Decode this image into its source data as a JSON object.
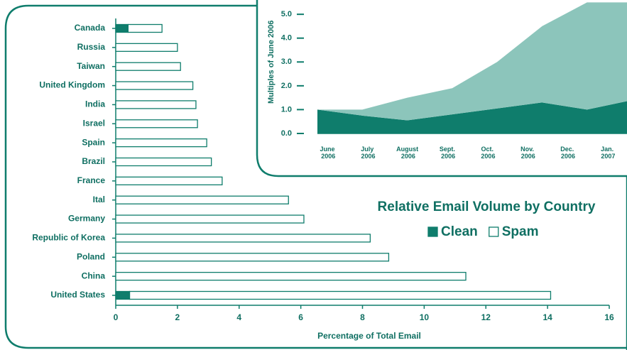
{
  "chart_data": [
    {
      "type": "bar",
      "orientation": "horizontal",
      "stacked": true,
      "title": "Relative Email Volume by Country",
      "x_label": "Percentage of Total Email",
      "categories": [
        "Canada",
        "Russia",
        "Taiwan",
        "United Kingdom",
        "India",
        "Israel",
        "Spain",
        "Brazil",
        "France",
        "Ital",
        "Germany",
        "Republic of Korea",
        "Poland",
        "China",
        "United States"
      ],
      "series": [
        {
          "name": "Clean",
          "color": "#0f7d6c",
          "values": [
            0.4,
            0,
            0,
            0,
            0,
            0,
            0,
            0,
            0,
            0,
            0,
            0,
            0,
            0,
            0.45
          ]
        },
        {
          "name": "Spam",
          "color": "#ffffff",
          "values": [
            1.1,
            2.0,
            2.1,
            2.5,
            2.6,
            2.65,
            2.95,
            3.1,
            3.45,
            5.6,
            6.1,
            8.25,
            8.85,
            11.35,
            13.65
          ]
        }
      ],
      "xlim": [
        0,
        16
      ],
      "xticks": [
        0,
        2,
        4,
        6,
        8,
        10,
        12,
        14,
        16
      ]
    },
    {
      "type": "area",
      "stacked": true,
      "y_label": "Multiples of June 2006",
      "categories": [
        "June 2006",
        "July 2006",
        "August 2006",
        "Sept. 2006",
        "Oct. 2006",
        "Nov. 2006",
        "Dec. 2006",
        "Jan. 2007"
      ],
      "series": [
        {
          "name": "Clean",
          "color": "#0f7d6c",
          "values": [
            1.0,
            0.75,
            0.55,
            0.8,
            1.05,
            1.3,
            1.0,
            1.4
          ]
        },
        {
          "name": "Spam",
          "color": "#8cc5bb",
          "values": [
            0,
            0.25,
            0.95,
            1.1,
            1.95,
            3.2,
            4.5,
            4.1
          ]
        }
      ],
      "ylim": [
        0,
        5.6
      ],
      "yticks": [
        {
          "value": 0,
          "label": "0.0"
        },
        {
          "value": 1,
          "label": "1.0"
        },
        {
          "value": 2,
          "label": "2.0"
        },
        {
          "value": 3,
          "label": "3.0"
        },
        {
          "value": 4,
          "label": "4.0"
        },
        {
          "value": 5,
          "label": "5.0"
        }
      ]
    }
  ]
}
